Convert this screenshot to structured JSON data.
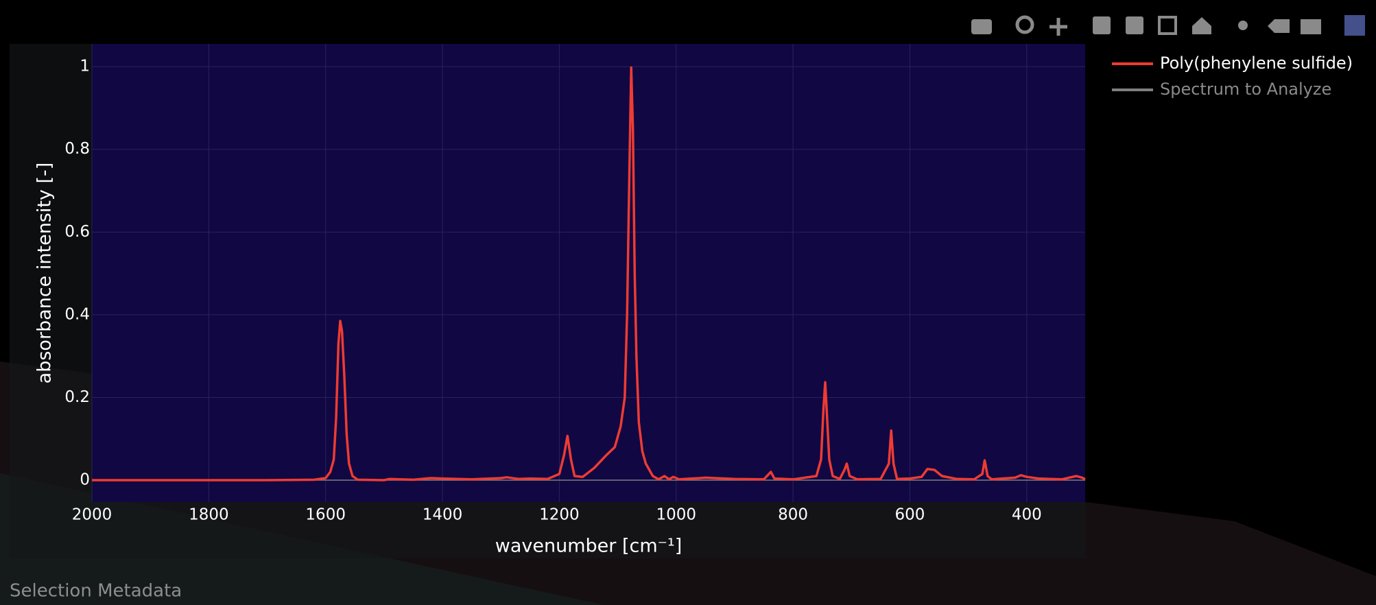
{
  "chart_data": {
    "type": "line",
    "xlabel": "wavenumber [cm⁻¹]",
    "ylabel": "absorbance intensity [-]",
    "xlim": [
      2000,
      300
    ],
    "ylim": [
      -0.053,
      1.055
    ],
    "xticks": [
      2000,
      1800,
      1600,
      1400,
      1200,
      1000,
      800,
      600,
      400
    ],
    "yticks": [
      0,
      0.2,
      0.4,
      0.6,
      0.8,
      1
    ],
    "grid": true,
    "legend": "outside-right",
    "series": [
      {
        "name": "Poly(phenylene sulfide)",
        "color": "#ee3b33",
        "x": [
          2000,
          1900,
          1800,
          1700,
          1620,
          1600,
          1592,
          1586,
          1582,
          1578,
          1575,
          1572,
          1568,
          1564,
          1560,
          1554,
          1545,
          1500,
          1490,
          1450,
          1420,
          1400,
          1350,
          1300,
          1290,
          1270,
          1250,
          1220,
          1200,
          1192,
          1186,
          1180,
          1174,
          1160,
          1140,
          1120,
          1105,
          1095,
          1088,
          1084,
          1080,
          1077,
          1074,
          1071,
          1068,
          1064,
          1058,
          1052,
          1040,
          1030,
          1020,
          1012,
          1005,
          995,
          960,
          950,
          900,
          850,
          838,
          832,
          800,
          760,
          752,
          748,
          745,
          742,
          738,
          732,
          720,
          712,
          708,
          703,
          690,
          650,
          636,
          632,
          628,
          622,
          600,
          580,
          570,
          558,
          545,
          520,
          490,
          476,
          472,
          467,
          460,
          420,
          410,
          400,
          380,
          340,
          315,
          305,
          300
        ],
        "values": [
          0,
          0,
          0,
          0,
          0.001,
          0.005,
          0.02,
          0.05,
          0.15,
          0.33,
          0.385,
          0.36,
          0.25,
          0.11,
          0.04,
          0.01,
          0.001,
          0,
          0.003,
          0.001,
          0.005,
          0.004,
          0.002,
          0.005,
          0.007,
          0.003,
          0.004,
          0.003,
          0.015,
          0.06,
          0.107,
          0.05,
          0.01,
          0.008,
          0.03,
          0.06,
          0.08,
          0.13,
          0.2,
          0.4,
          0.75,
          0.998,
          0.85,
          0.5,
          0.3,
          0.14,
          0.07,
          0.04,
          0.01,
          0.002,
          0.01,
          0.002,
          0.008,
          0.002,
          0.005,
          0.006,
          0.003,
          0.002,
          0.02,
          0.004,
          0.002,
          0.01,
          0.05,
          0.17,
          0.237,
          0.16,
          0.05,
          0.01,
          0.003,
          0.025,
          0.04,
          0.01,
          0.002,
          0.003,
          0.04,
          0.12,
          0.04,
          0.003,
          0.004,
          0.008,
          0.027,
          0.025,
          0.01,
          0.003,
          0.002,
          0.015,
          0.048,
          0.01,
          0.002,
          0.006,
          0.012,
          0.008,
          0.004,
          0.002,
          0.01,
          0.006,
          0.002
        ]
      },
      {
        "name": "Spectrum to Analyze",
        "color": "#7f7f7f",
        "x": [
          2000,
          300
        ],
        "values": [
          0,
          0
        ]
      }
    ]
  },
  "footer": "Selection Metadata"
}
